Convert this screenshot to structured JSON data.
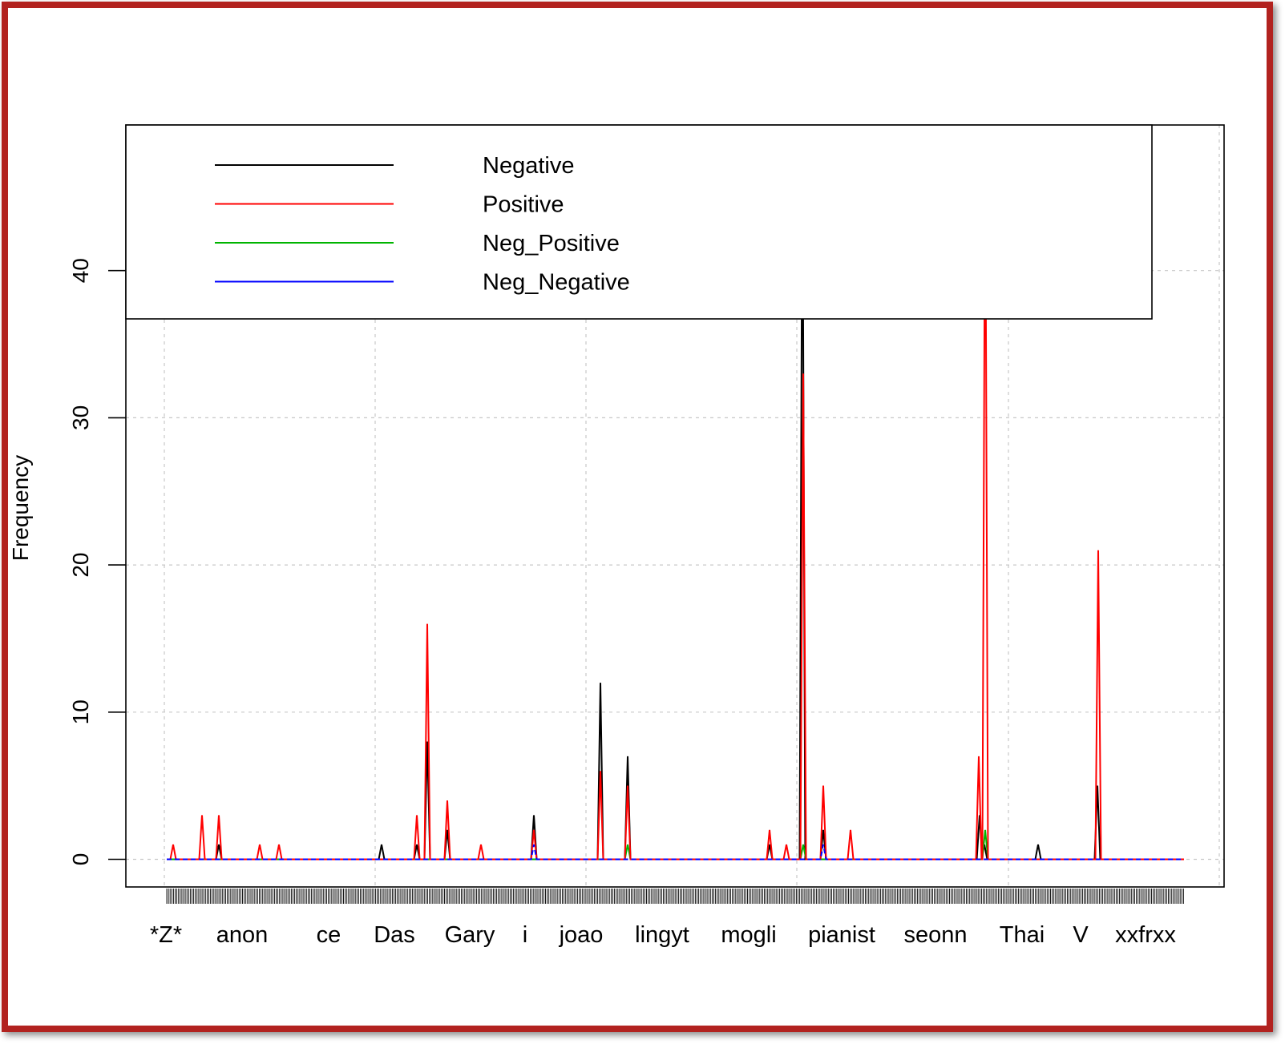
{
  "chart_data": {
    "type": "line",
    "title": "",
    "xlabel": "",
    "ylabel": "Frequency",
    "ylim": [
      -1.9,
      50
    ],
    "yticks": [
      0,
      10,
      20,
      30,
      40
    ],
    "grid": true,
    "legend_position": "top-left",
    "category_labels": [
      "*Z*",
      "anon",
      "ce",
      "Das",
      "Gary",
      "i",
      "joao",
      "lingyt",
      "mogli",
      "pianist",
      "seonn",
      "Thai",
      "V",
      "xxfrxx"
    ],
    "series": [
      {
        "name": "Negative",
        "color": "#000000",
        "dash": false,
        "peaks": [
          [
            273,
            1
          ],
          [
            476,
            1
          ],
          [
            520,
            1
          ],
          [
            533,
            8
          ],
          [
            558,
            2
          ],
          [
            666,
            3
          ],
          [
            749,
            12
          ],
          [
            783,
            7
          ],
          [
            960,
            1
          ],
          [
            1001,
            50
          ],
          [
            1027,
            2
          ],
          [
            1222,
            3
          ],
          [
            1228,
            1
          ],
          [
            1295,
            1
          ],
          [
            1369,
            5
          ]
        ]
      },
      {
        "name": "Positive",
        "color": "#ff0000",
        "dash": false,
        "peaks": [
          [
            216,
            1
          ],
          [
            252,
            3
          ],
          [
            273,
            3
          ],
          [
            324,
            1
          ],
          [
            348,
            1
          ],
          [
            520,
            3
          ],
          [
            533,
            16
          ],
          [
            558,
            4
          ],
          [
            600,
            1
          ],
          [
            666,
            2
          ],
          [
            749,
            6
          ],
          [
            783,
            5
          ],
          [
            960,
            2
          ],
          [
            981,
            1
          ],
          [
            1002,
            33
          ],
          [
            1027,
            5
          ],
          [
            1061,
            2
          ],
          [
            1221,
            7
          ],
          [
            1229,
            50
          ],
          [
            1370,
            21
          ]
        ]
      },
      {
        "name": "Neg_Positive",
        "color": "#00b400",
        "dash": false,
        "peaks": [
          [
            783,
            1
          ],
          [
            1002,
            1
          ],
          [
            1229,
            2
          ]
        ]
      },
      {
        "name": "Neg_Negative",
        "color": "#0000ff",
        "dash": true,
        "peaks": [
          [
            666,
            1
          ],
          [
            1027,
            1
          ]
        ]
      }
    ]
  }
}
